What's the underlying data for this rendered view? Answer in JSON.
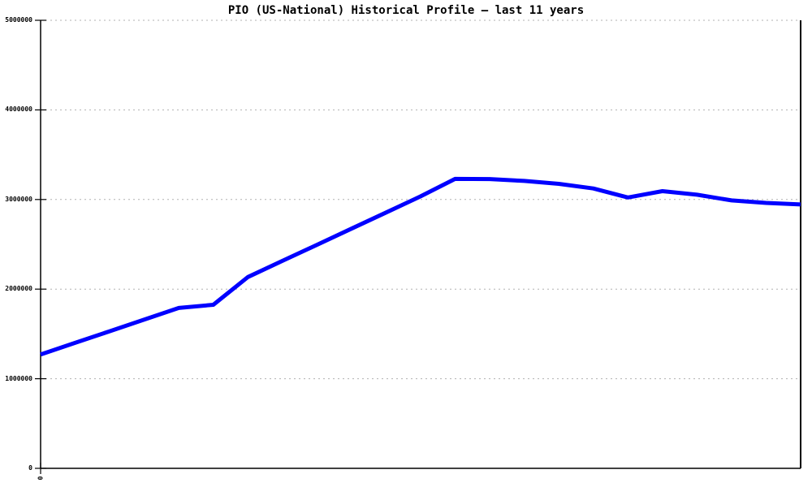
{
  "title": "PIO (US-National) Historical Profile – last 11 years",
  "colors": {
    "background": "#ffffff",
    "line": "#0000ff",
    "grid": "#b0b0b0",
    "axis": "#000000"
  },
  "y_axis": {
    "tick_labels": [
      "5000000",
      "4000000",
      "3000000",
      "2000000",
      "1000000",
      "0"
    ]
  },
  "x_axis": {
    "tick_labels": [
      "0"
    ]
  },
  "chart_data": {
    "type": "line",
    "title": "PIO (US-National) Historical Profile – last 11 years",
    "xlabel": "",
    "ylabel": "",
    "ylim": [
      0,
      5000000
    ],
    "y_tick_values": [
      0,
      1000000,
      2000000,
      3000000,
      4000000,
      5000000
    ],
    "x_tick_labels": [
      "0"
    ],
    "grid": "horizontal-dashed",
    "legend": "none",
    "series": [
      {
        "name": "PIO (US-National)",
        "color": "#0000ff",
        "points_note": "23 evenly spaced points (semi-annual, last 11 years), values estimated from gridlines",
        "values": [
          1270000,
          1400000,
          1530000,
          1660000,
          1790000,
          1825000,
          2135000,
          2315000,
          2495000,
          2675000,
          2855000,
          3035000,
          3230000,
          3228000,
          3207000,
          3175000,
          3123000,
          3023000,
          3093000,
          3053000,
          2990000,
          2962000,
          2945000
        ]
      }
    ]
  }
}
